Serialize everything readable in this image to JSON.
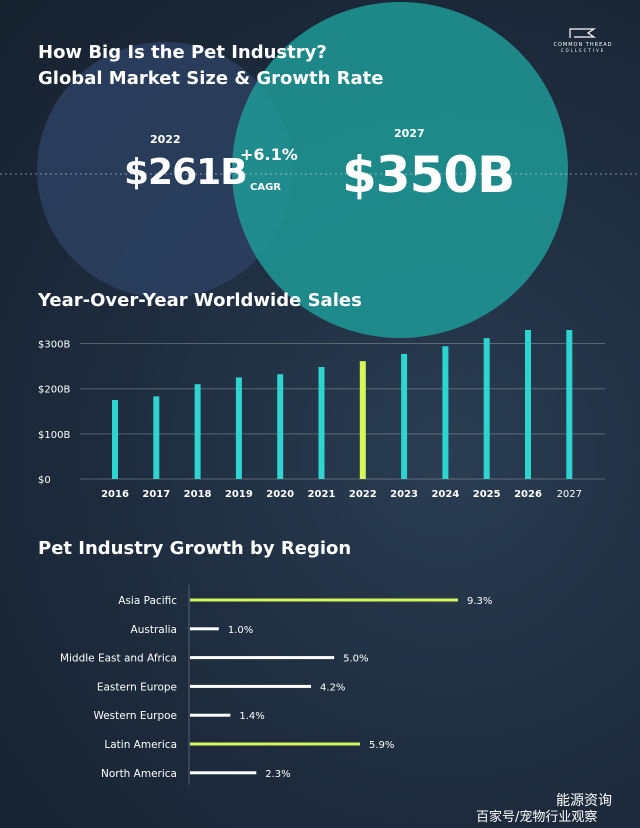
{
  "header": {
    "title_line1": "How Big Is the Pet Industry?",
    "title_line2": "Global Market Size & Growth Rate",
    "logo_line1": "COMMON THREAD",
    "logo_line2": "COLLECTIVE"
  },
  "market": {
    "year_a": "2022",
    "value_a": "$261B",
    "year_b": "2027",
    "value_b": "$350B",
    "cagr_value": "+6.1%",
    "cagr_label": "CAGR"
  },
  "colors": {
    "background": "#1c2a3c",
    "circle_left": "#2b3f5f",
    "circle_right": "#1f9e9a",
    "bar": "#2dd4d0",
    "highlight": "#d6f75a",
    "white": "#ffffff"
  },
  "chart_data": [
    {
      "type": "bar",
      "title": "Year-Over-Year Worldwide Sales",
      "categories": [
        "2016",
        "2017",
        "2018",
        "2019",
        "2020",
        "2021",
        "2022",
        "2023",
        "2024",
        "2025",
        "2026",
        "2027"
      ],
      "values": [
        175,
        183,
        210,
        225,
        232,
        248,
        261,
        277,
        294,
        312,
        331,
        350
      ],
      "highlight_category": "2022",
      "yticks": [
        0,
        100,
        200,
        300
      ],
      "ytick_labels": [
        "$0",
        "$100B",
        "$200B",
        "$300B"
      ],
      "ylim": [
        0,
        330
      ],
      "grid": true
    },
    {
      "type": "bar",
      "orientation": "horizontal",
      "title": "Pet Industry Growth by Region",
      "categories": [
        "Asia Pacific",
        "Australia",
        "Middle East and Africa",
        "Eastern Europe",
        "Western Eurpoe",
        "Latin America",
        "North America"
      ],
      "values": [
        9.3,
        1.0,
        5.0,
        4.2,
        1.4,
        5.9,
        2.3
      ],
      "value_labels": [
        "9.3%",
        "1.0%",
        "5.0%",
        "4.2%",
        "1.4%",
        "5.9%",
        "2.3%"
      ],
      "highlighted": [
        true,
        false,
        false,
        false,
        false,
        true,
        false
      ],
      "xlim": [
        0,
        9.3
      ]
    }
  ],
  "watermark": {
    "account": "能源资询",
    "source": "百家号/宠物行业观察"
  }
}
